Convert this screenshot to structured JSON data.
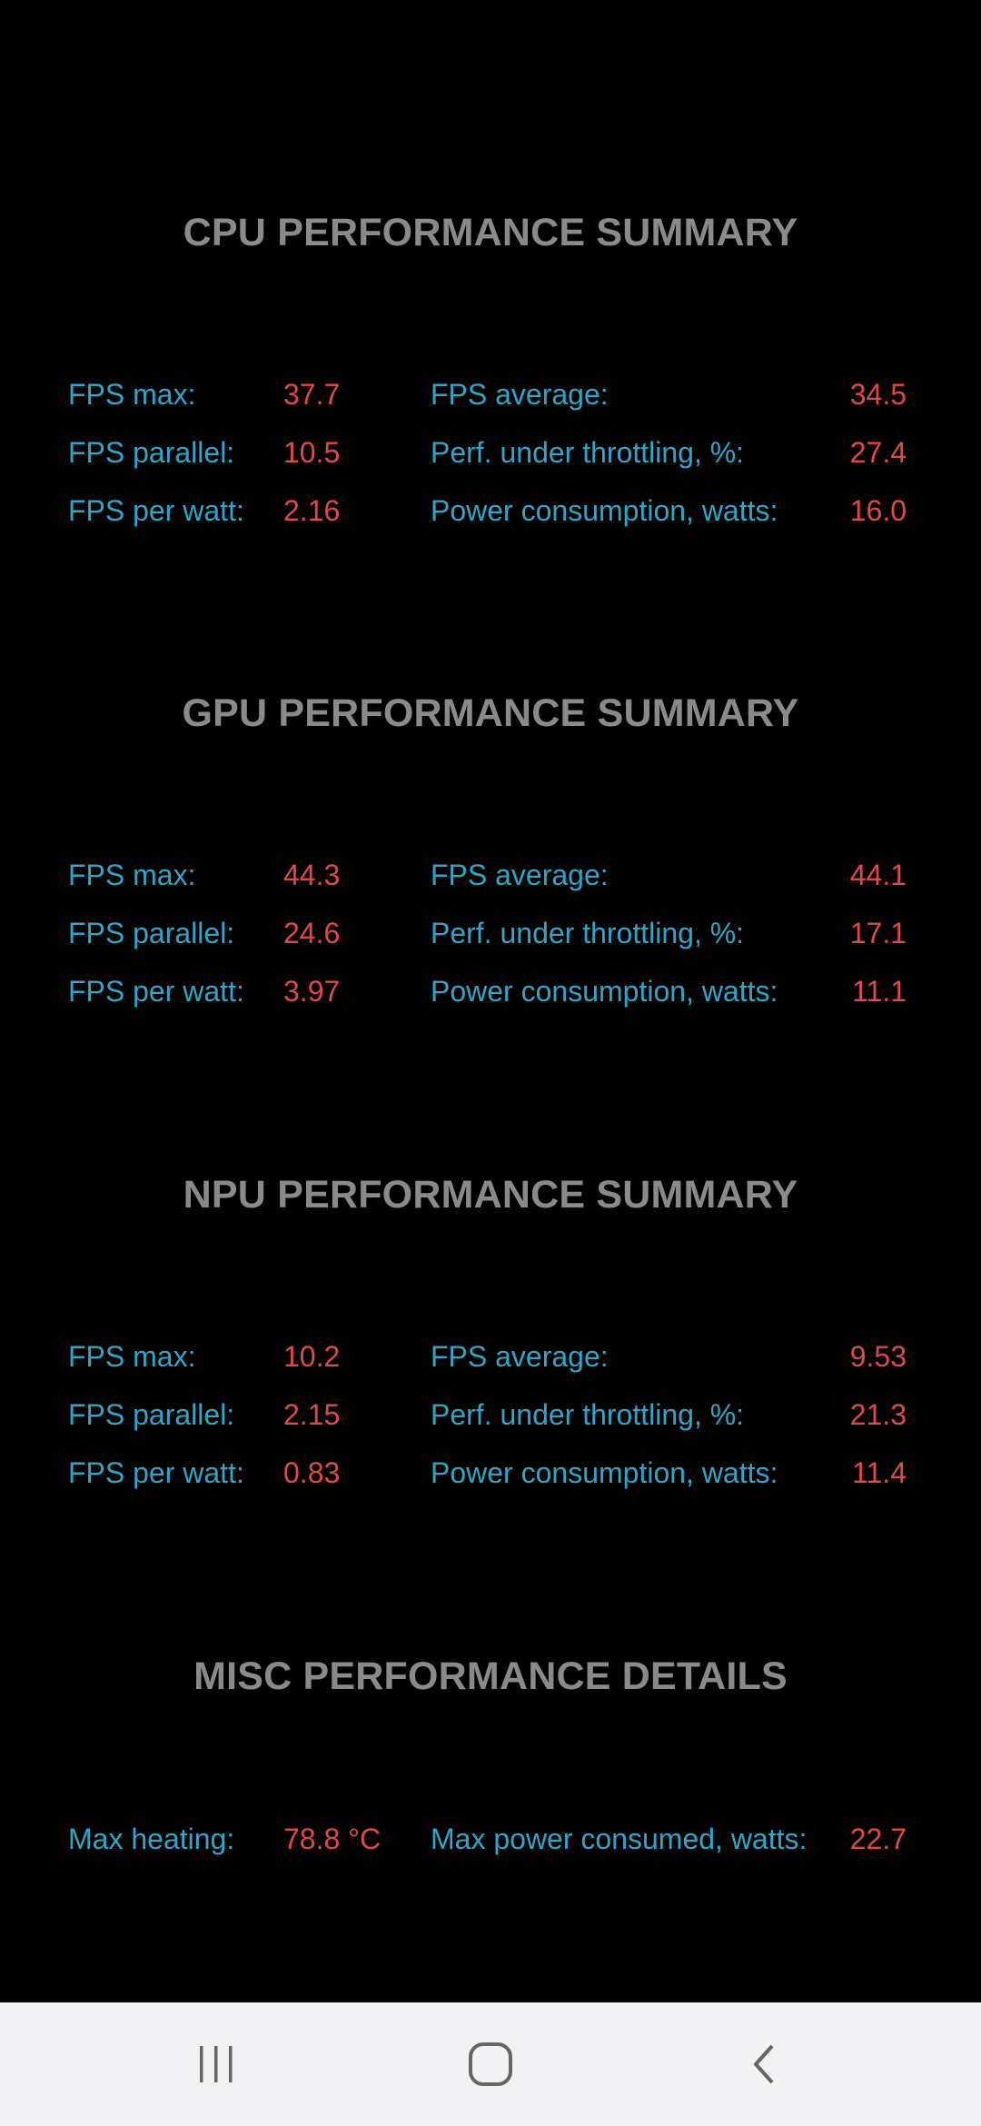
{
  "sections": [
    {
      "title": "CPU PERFORMANCE SUMMARY",
      "rows": [
        {
          "label1": "FPS max:",
          "value1": "37.7",
          "label2": "FPS average:",
          "value2": "34.5"
        },
        {
          "label1": "FPS parallel:",
          "value1": "10.5",
          "label2": "Perf. under throttling, %:",
          "value2": "27.4"
        },
        {
          "label1": "FPS per watt:",
          "value1": "2.16",
          "label2": "Power consumption, watts:",
          "value2": "16.0"
        }
      ]
    },
    {
      "title": "GPU PERFORMANCE SUMMARY",
      "rows": [
        {
          "label1": "FPS max:",
          "value1": "44.3",
          "label2": "FPS average:",
          "value2": "44.1"
        },
        {
          "label1": "FPS parallel:",
          "value1": "24.6",
          "label2": "Perf. under throttling, %:",
          "value2": "17.1"
        },
        {
          "label1": "FPS per watt:",
          "value1": "3.97",
          "label2": "Power consumption, watts:",
          "value2": "11.1"
        }
      ]
    },
    {
      "title": "NPU PERFORMANCE SUMMARY",
      "rows": [
        {
          "label1": "FPS max:",
          "value1": "10.2",
          "label2": "FPS average:",
          "value2": "9.53"
        },
        {
          "label1": "FPS parallel:",
          "value1": "2.15",
          "label2": "Perf. under throttling, %:",
          "value2": "21.3"
        },
        {
          "label1": "FPS per watt:",
          "value1": "0.83",
          "label2": "Power consumption, watts:",
          "value2": "11.4"
        }
      ]
    },
    {
      "title": "MISC PERFORMANCE DETAILS",
      "rows": [
        {
          "label1": "Max heating:",
          "value1": "78.8 °C",
          "label2": "Max power consumed, watts:",
          "value2": "22.7"
        }
      ]
    }
  ],
  "navbar": {
    "recent_icon": "recent-apps-icon",
    "home_icon": "home-icon",
    "back_icon": "back-icon"
  },
  "colors": {
    "background": "#000000",
    "title": "#8a8a8a",
    "label": "#2fa5c8",
    "value": "#e0484a",
    "navbar": "#f2f2f4"
  }
}
